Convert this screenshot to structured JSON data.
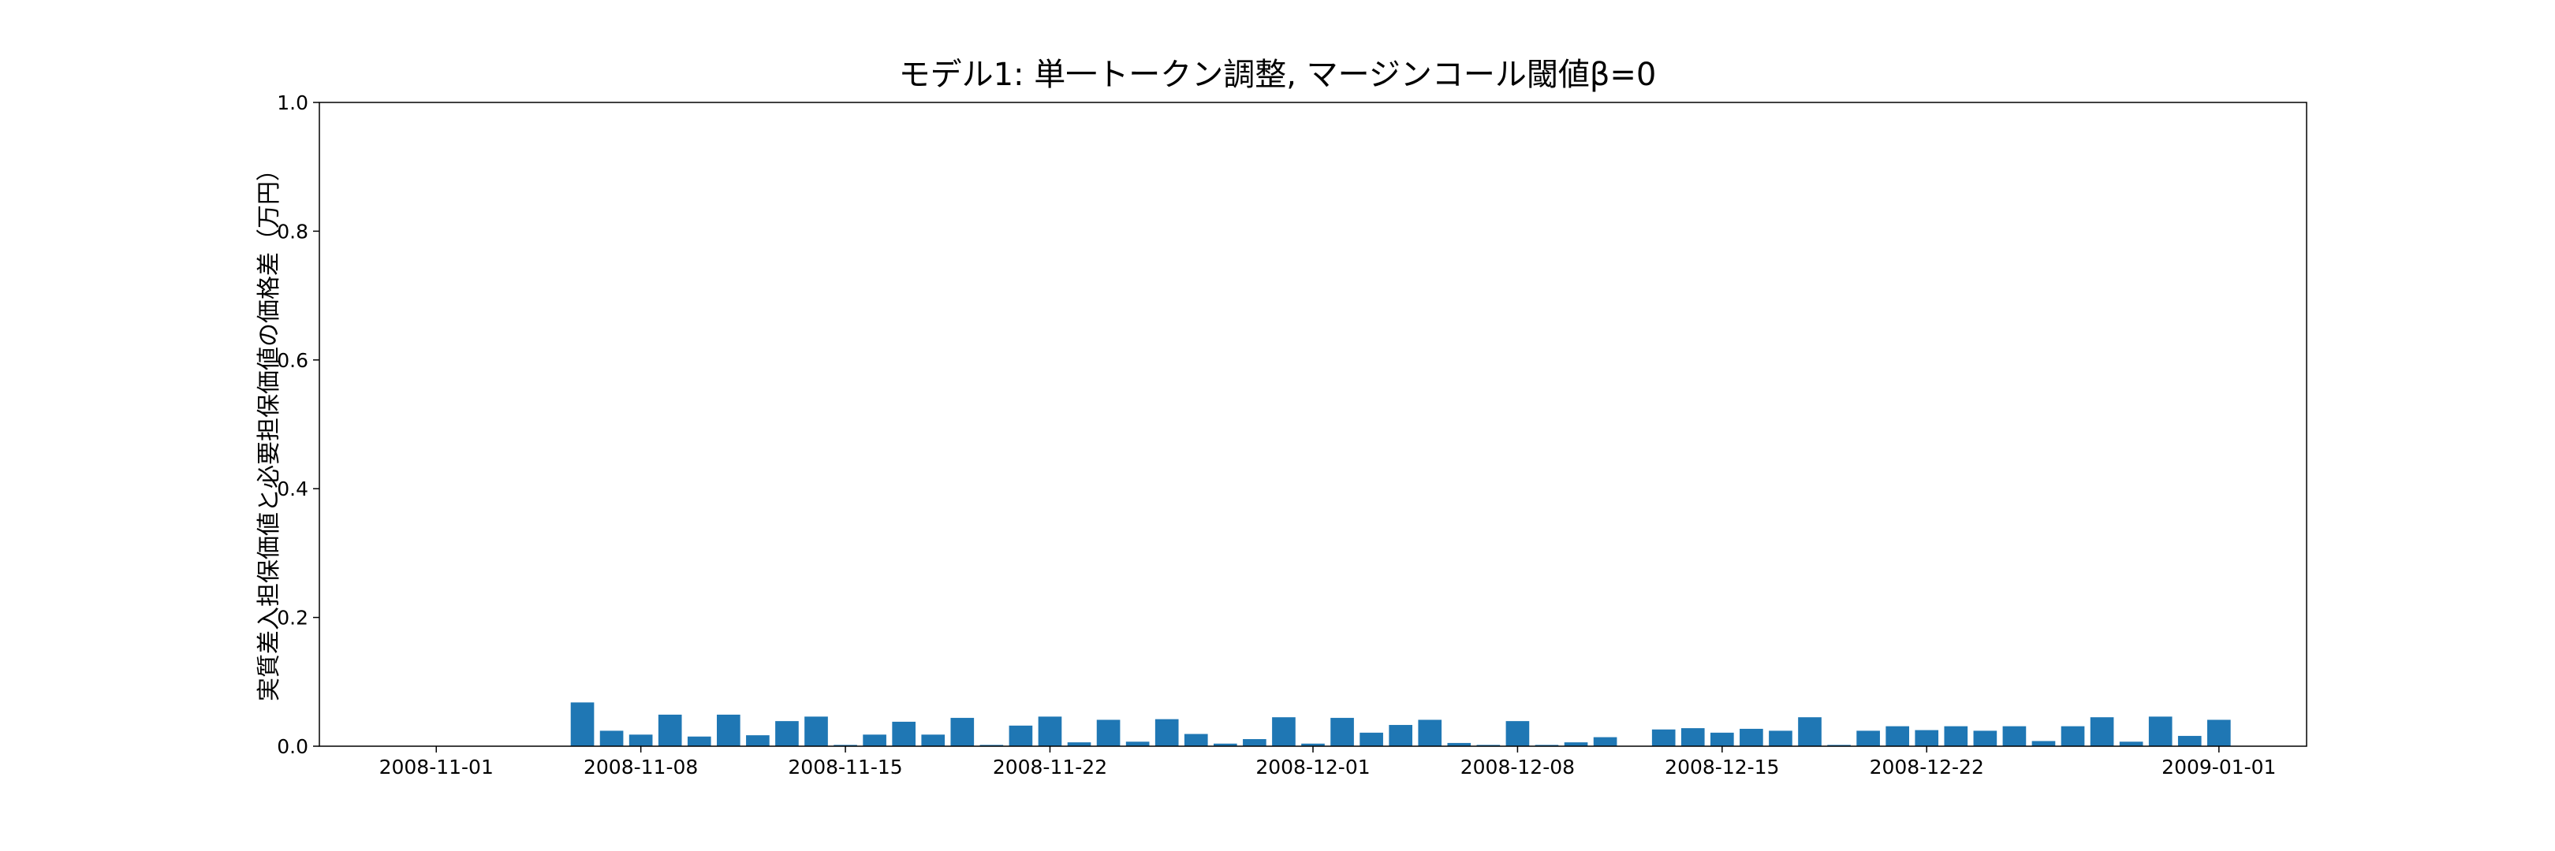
{
  "chart_data": {
    "type": "bar",
    "title": "モデル1: 単一トークン調整, マージンコール閾値β=0",
    "xlabel": "",
    "ylabel": "実質差入担保価値と必要担保価値の価格差（万円）",
    "ylim": [
      0,
      1.0
    ],
    "xlim": [
      "2008-10-28",
      "2009-01-04"
    ],
    "y_ticks": [
      "0.0",
      "0.2",
      "0.4",
      "0.6",
      "0.8",
      "1.0"
    ],
    "x_ticks": [
      "2008-11-01",
      "2008-11-08",
      "2008-11-15",
      "2008-11-22",
      "2008-12-01",
      "2008-12-08",
      "2008-12-15",
      "2008-12-22",
      "2009-01-01"
    ],
    "grid": false,
    "bar_color": "#1f77b4",
    "series": [
      {
        "x": [
          "2008-11-06",
          "2008-11-07",
          "2008-11-08",
          "2008-11-09",
          "2008-11-10",
          "2008-11-11",
          "2008-11-12",
          "2008-11-13",
          "2008-11-14",
          "2008-11-15",
          "2008-11-16",
          "2008-11-17",
          "2008-11-18",
          "2008-11-19",
          "2008-11-20",
          "2008-11-21",
          "2008-11-22",
          "2008-11-23",
          "2008-11-24",
          "2008-11-25",
          "2008-11-26",
          "2008-11-27",
          "2008-11-28",
          "2008-11-29",
          "2008-11-30",
          "2008-12-01",
          "2008-12-02",
          "2008-12-03",
          "2008-12-04",
          "2008-12-05",
          "2008-12-06",
          "2008-12-07",
          "2008-12-08",
          "2008-12-09",
          "2008-12-10",
          "2008-12-11",
          "2008-12-12",
          "2008-12-13",
          "2008-12-14",
          "2008-12-15",
          "2008-12-16",
          "2008-12-17",
          "2008-12-18",
          "2008-12-19",
          "2008-12-20",
          "2008-12-21",
          "2008-12-22",
          "2008-12-23",
          "2008-12-24",
          "2008-12-25",
          "2008-12-26",
          "2008-12-27",
          "2008-12-28",
          "2008-12-29",
          "2008-12-30",
          "2008-12-31",
          "2009-01-01",
          "2009-01-02",
          "2009-01-03"
        ],
        "values": [
          0.068,
          0.024,
          0.018,
          0.049,
          0.015,
          0.049,
          0.017,
          0.039,
          0.046,
          0.002,
          0.018,
          0.038,
          0.018,
          0.044,
          0.002,
          0.032,
          0.046,
          0.006,
          0.041,
          0.007,
          0.042,
          0.019,
          0.004,
          0.011,
          0.045,
          0.004,
          0.044,
          0.021,
          0.033,
          0.041,
          0.005,
          0.002,
          0.039,
          0.002,
          0.006,
          0.014,
          0.0,
          0.026,
          0.028,
          0.021,
          0.027,
          0.024,
          0.045,
          0.002,
          0.024,
          0.031,
          0.025,
          0.031,
          0.024,
          0.031,
          0.008,
          0.031,
          0.045,
          0.007,
          0.046,
          0.016,
          0.041,
          0.0,
          0.0
        ]
      }
    ]
  }
}
